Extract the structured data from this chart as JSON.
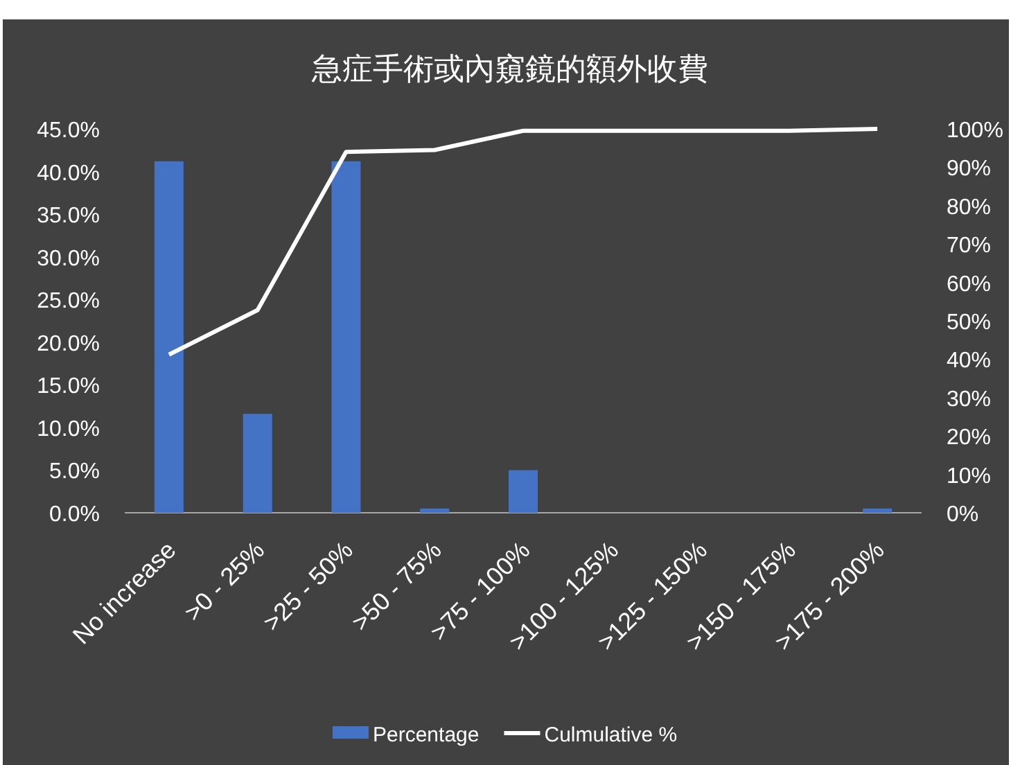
{
  "chart_data": {
    "type": "bar",
    "title": "急症手術或內窺鏡的額外收費",
    "categories": [
      "No increase",
      ">0 - 25%",
      ">25 - 50%",
      ">50 - 75%",
      ">75 - 100%",
      ">100 - 125%",
      ">125 - 150%",
      ">150 - 175%",
      ">175 - 200%"
    ],
    "series": [
      {
        "name": "Percentage",
        "color": "#4472c4",
        "values": [
          41.2,
          11.6,
          41.2,
          0.5,
          5.0,
          0,
          0,
          0,
          0.5
        ]
      },
      {
        "name": "Culmulative %",
        "type": "line",
        "axis": "y2",
        "color": "#ffffff",
        "values": [
          41.2,
          52.8,
          94.0,
          94.5,
          99.5,
          99.5,
          99.5,
          99.5,
          100
        ]
      }
    ],
    "ylim": [
      0,
      45
    ],
    "yticks": [
      {
        "value": 0,
        "label": "0.0%"
      },
      {
        "value": 5,
        "label": "5.0%"
      },
      {
        "value": 10,
        "label": "10.0%"
      },
      {
        "value": 15,
        "label": "15.0%"
      },
      {
        "value": 20,
        "label": "20.0%"
      },
      {
        "value": 25,
        "label": "25.0%"
      },
      {
        "value": 30,
        "label": "30.0%"
      },
      {
        "value": 35,
        "label": "35.0%"
      },
      {
        "value": 40,
        "label": "40.0%"
      },
      {
        "value": 45,
        "label": "45.0%"
      }
    ],
    "y2lim": [
      0,
      100
    ],
    "y2ticks": [
      {
        "value": 0,
        "label": "0%"
      },
      {
        "value": 10,
        "label": "10%"
      },
      {
        "value": 20,
        "label": "20%"
      },
      {
        "value": 30,
        "label": "30%"
      },
      {
        "value": 40,
        "label": "40%"
      },
      {
        "value": 50,
        "label": "50%"
      },
      {
        "value": 60,
        "label": "60%"
      },
      {
        "value": 70,
        "label": "70%"
      },
      {
        "value": 80,
        "label": "80%"
      },
      {
        "value": 90,
        "label": "90%"
      },
      {
        "value": 100,
        "label": "100%"
      }
    ],
    "legend": "bottom",
    "marker": "none",
    "line_style": "solid"
  }
}
